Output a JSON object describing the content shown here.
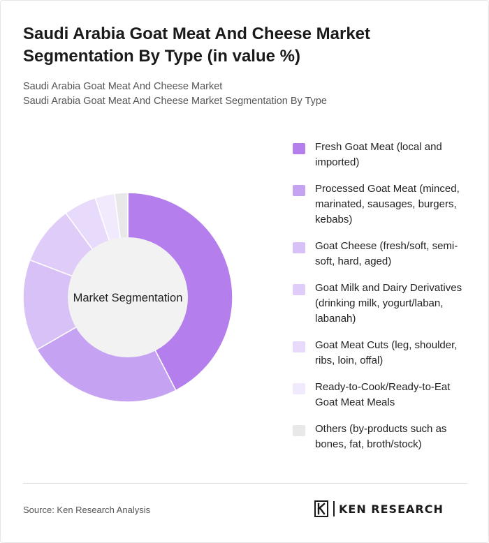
{
  "title": "Saudi Arabia Goat Meat And Cheese Market Segmentation By Type (in value %)",
  "subtitle_lines": [
    "Saudi Arabia Goat Meat And Cheese Market",
    "Saudi Arabia Goat Meat And Cheese Market Segmentation By Type"
  ],
  "chart_data": {
    "type": "pie",
    "variant": "donut",
    "center_label": "Market Segmentation",
    "legend_position": "right",
    "categories": [
      "Fresh Goat Meat (local and imported)",
      "Processed Goat Meat (minced, marinated, sausages, burgers, kebabs)",
      "Goat Cheese (fresh/soft, semi-soft, hard, aged)",
      "Goat Milk and Dairy Derivatives (drinking milk, yogurt/laban, labanah)",
      "Goat Meat Cuts (leg, shoulder, ribs, loin, offal)",
      "Ready-to-Cook/Ready-to-Eat Goat Meat Meals",
      "Others (by-products such as bones, fat, broth/stock)"
    ],
    "values": [
      42,
      24,
      14,
      9,
      5,
      3,
      2
    ],
    "colors": [
      "#b47fec",
      "#c6a2f2",
      "#d8c1f6",
      "#e0ccf8",
      "#e7dafa",
      "#f1eafc",
      "#e8e8e8"
    ]
  },
  "footer": {
    "source": "Source: Ken Research Analysis",
    "logo_text": "KEN RESEARCH"
  }
}
